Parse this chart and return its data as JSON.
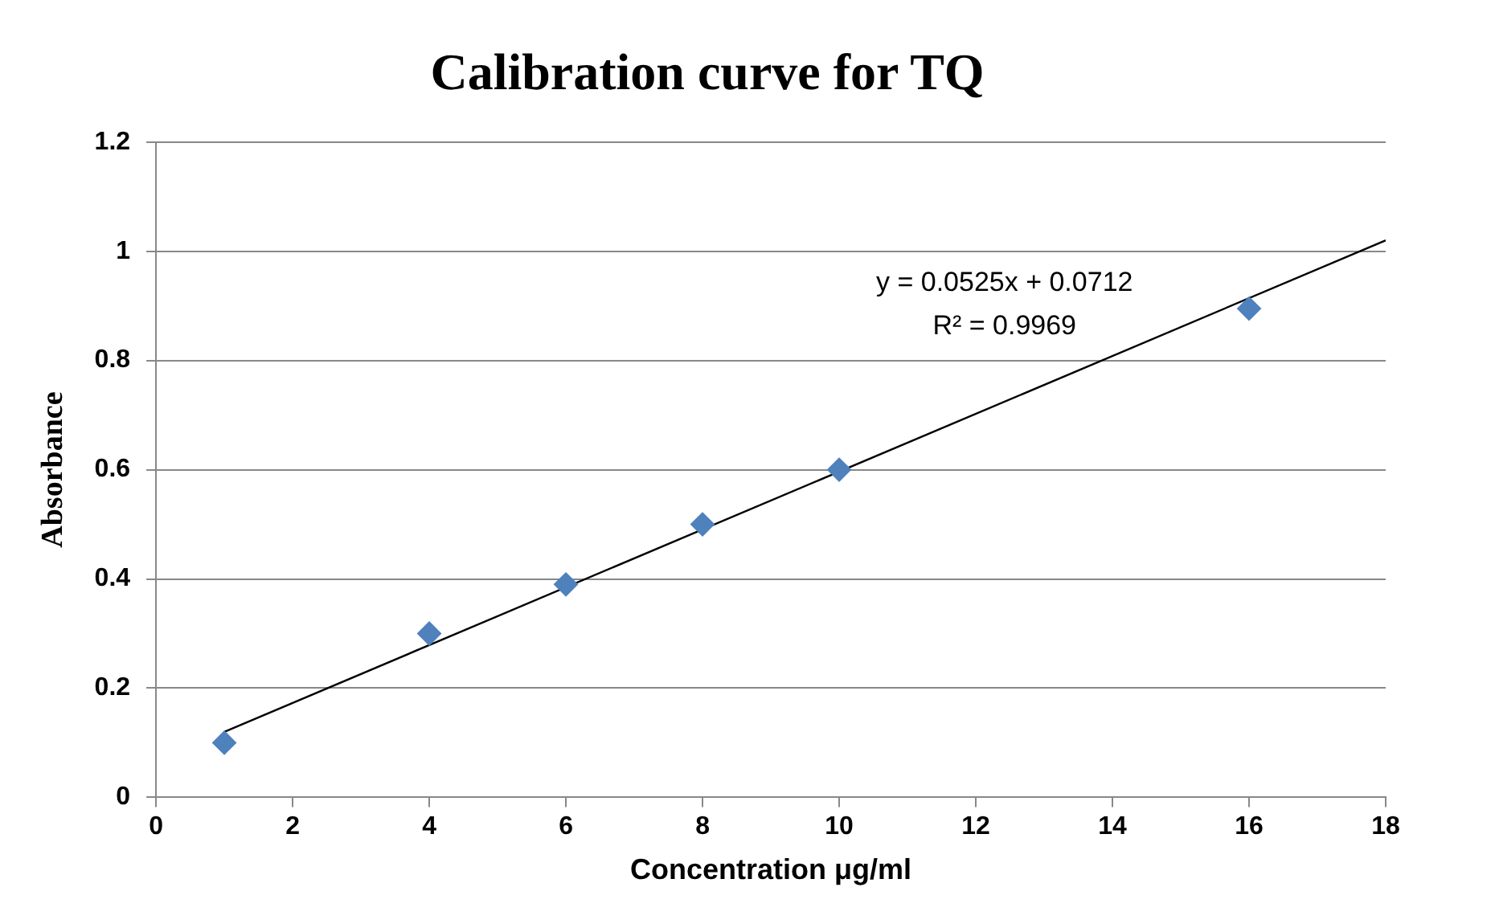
{
  "chart_data": {
    "type": "scatter",
    "title": "Calibration curve for TQ",
    "xlabel": "Concentration μg/ml",
    "ylabel": "Absorbance",
    "series": [
      {
        "color": "#4f81bd",
        "x": [
          1,
          4,
          6,
          8,
          10,
          16
        ],
        "values": [
          0.1,
          0.3,
          0.39,
          0.5,
          0.6,
          0.895
        ],
        "marker": "diamond"
      },
      {
        "type": "line",
        "color": "#000000",
        "x": [
          1,
          18
        ],
        "values": [
          0.12,
          1.02
        ],
        "marker": "none"
      }
    ],
    "annotations": [
      "y = 0.0525x + 0.0712",
      "R² = 0.9969"
    ],
    "xlim": [
      0,
      18
    ],
    "xticks": [
      0,
      2,
      4,
      6,
      8,
      10,
      12,
      14,
      16,
      18
    ],
    "ylim": [
      0,
      1.2
    ],
    "yticks": [
      0,
      0.2,
      0.4,
      0.6,
      0.8,
      1,
      1.2
    ],
    "grid": "y",
    "legend": false
  }
}
